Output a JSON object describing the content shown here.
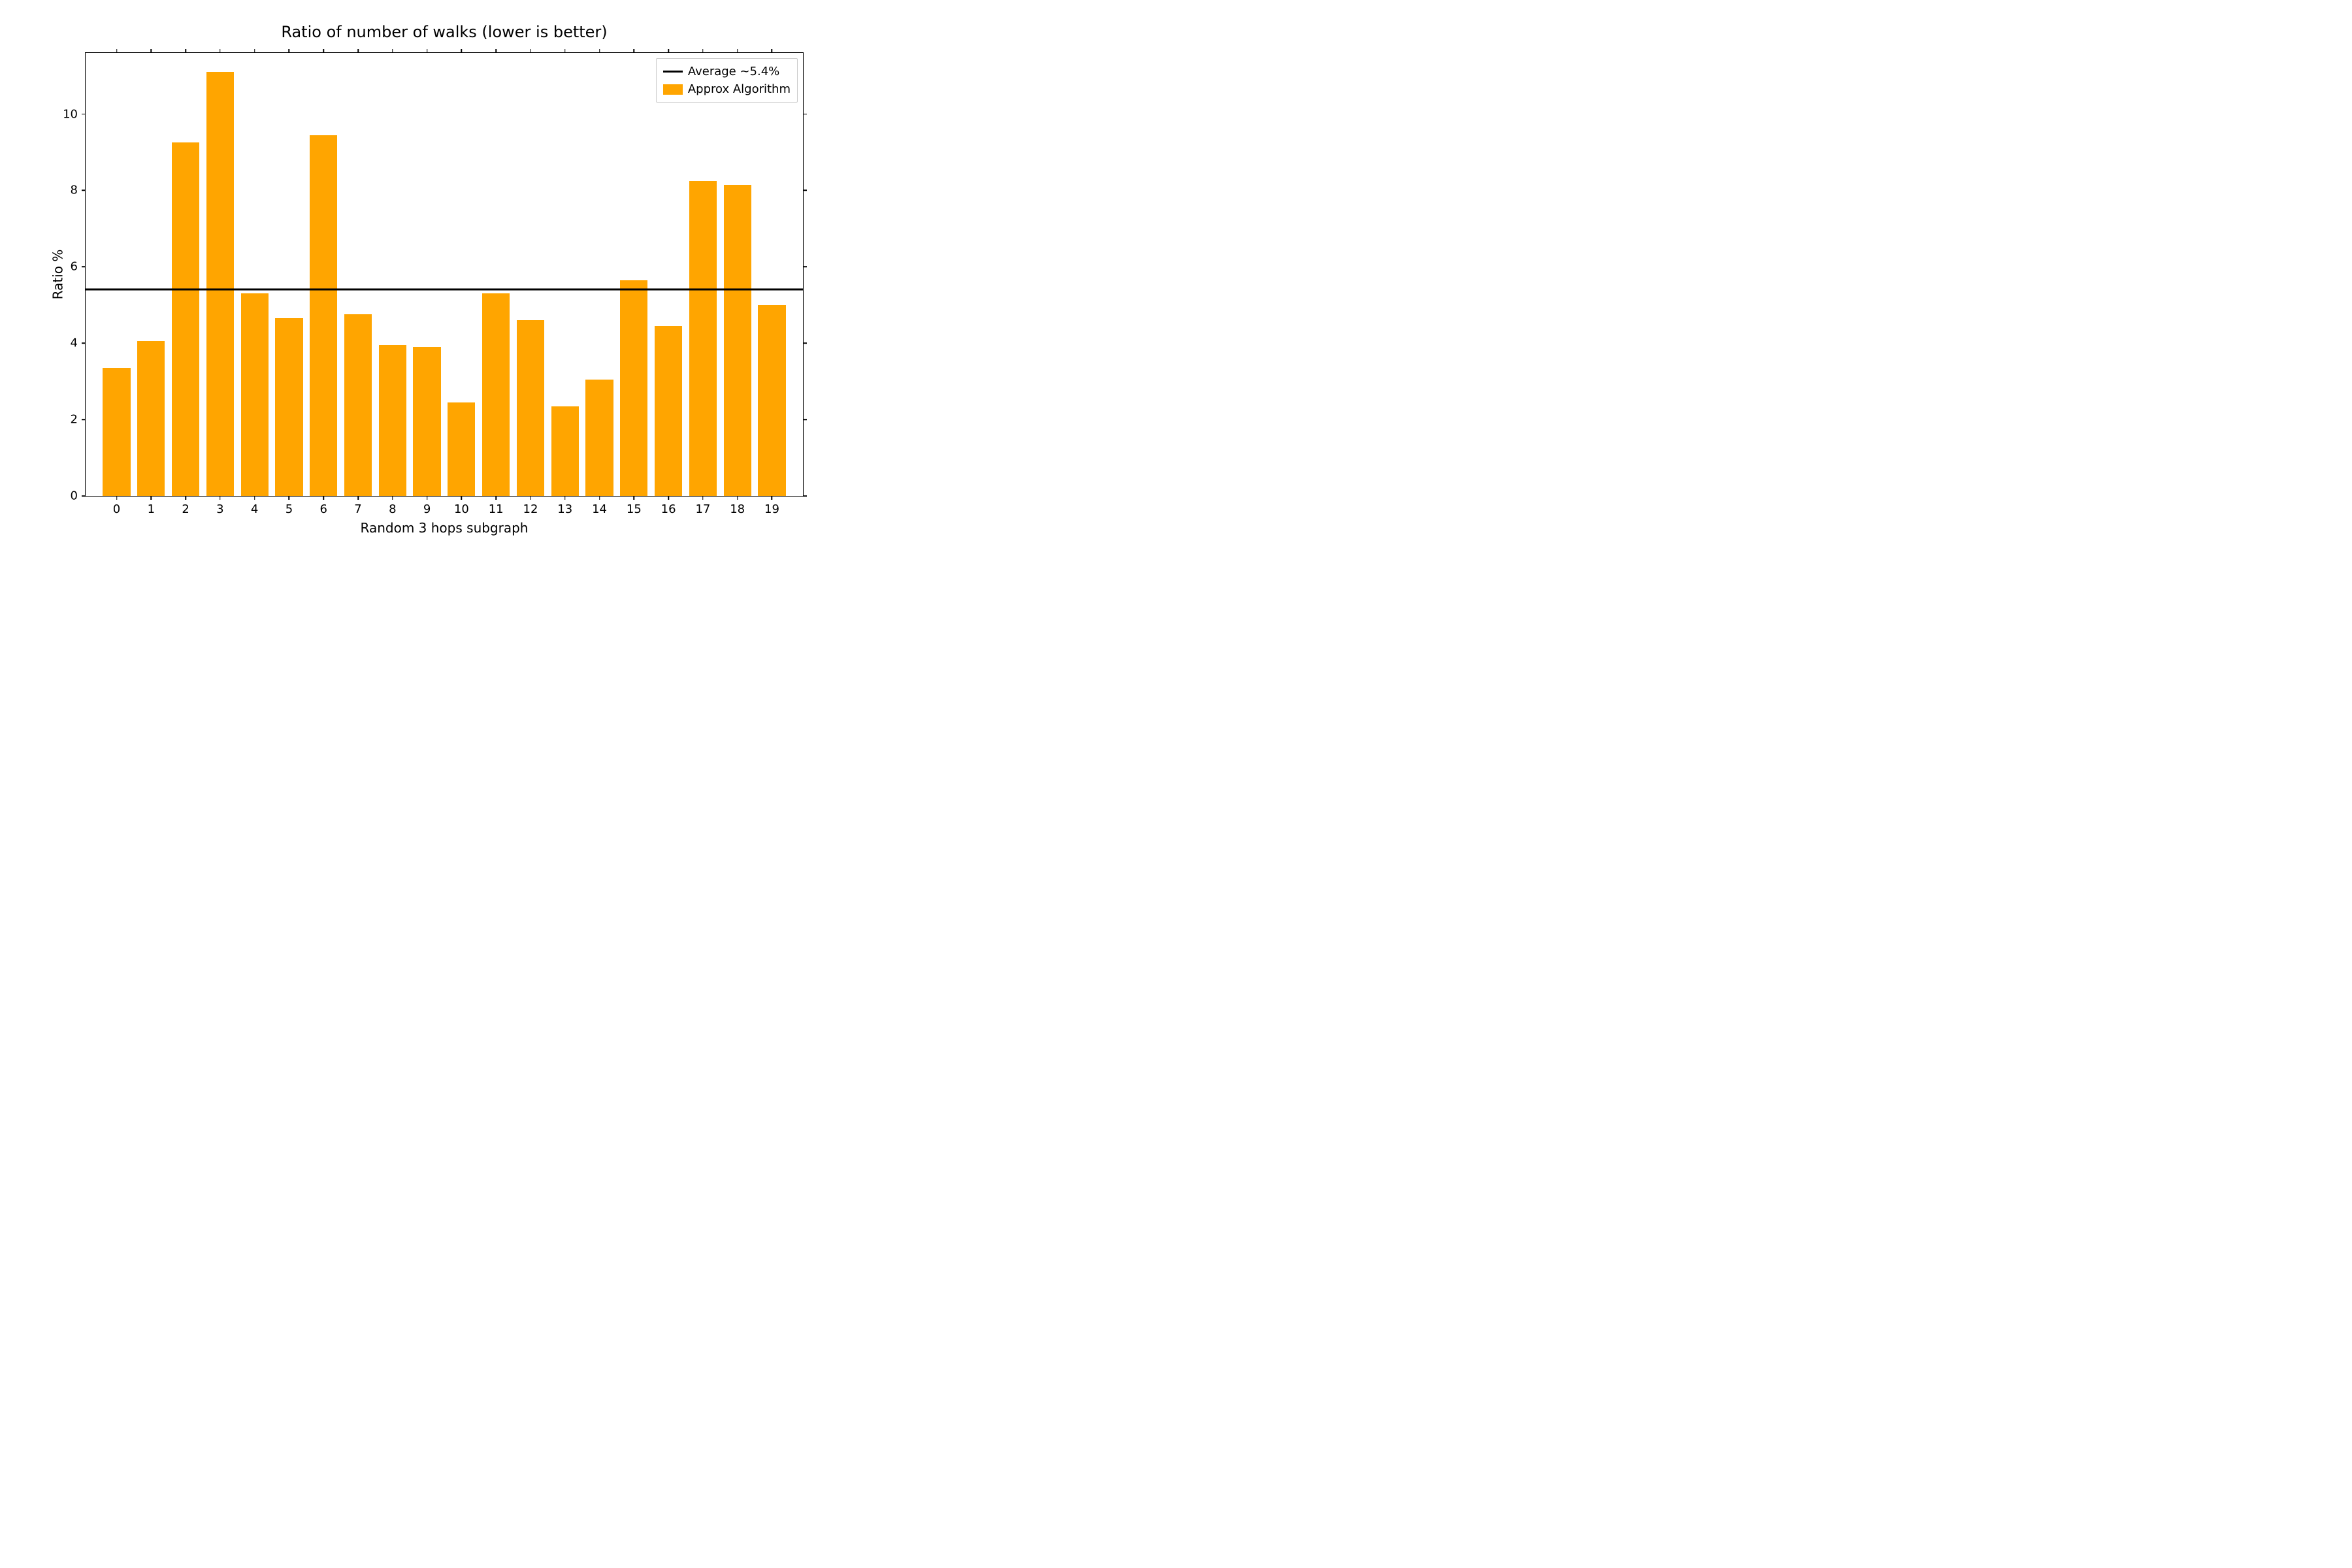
{
  "chart": {
    "type": "bar",
    "title": "Ratio of number of walks (lower is better)",
    "title_fontsize": 24,
    "xlabel": "Random 3 hops subgraph",
    "ylabel": "Ratio %",
    "label_fontsize": 20,
    "tick_fontsize": 18,
    "categories": [
      "0",
      "1",
      "2",
      "3",
      "4",
      "5",
      "6",
      "7",
      "8",
      "9",
      "10",
      "11",
      "12",
      "13",
      "14",
      "15",
      "16",
      "17",
      "18",
      "19"
    ],
    "values": [
      3.35,
      4.05,
      9.25,
      11.1,
      5.3,
      4.65,
      9.45,
      4.75,
      3.95,
      3.9,
      2.45,
      5.3,
      4.6,
      2.35,
      3.05,
      5.65,
      4.45,
      8.25,
      8.15,
      5.0
    ],
    "bar_color": "#ffa500",
    "bar_width": 0.8,
    "background_color": "#ffffff",
    "border_color": "#000000",
    "xlim": [
      -0.9,
      19.9
    ],
    "ylim": [
      0,
      11.6
    ],
    "yticks": [
      0,
      2,
      4,
      6,
      8,
      10
    ],
    "average_line": {
      "value": 5.4,
      "color": "#000000",
      "width": 3,
      "label": "Average ~5.4%"
    },
    "legend": {
      "position": "upper-right",
      "entries": [
        {
          "type": "line",
          "color": "#000000",
          "label": "Average ~5.4%"
        },
        {
          "type": "bar",
          "color": "#ffa500",
          "label": "Approx Algorithm"
        }
      ]
    }
  }
}
